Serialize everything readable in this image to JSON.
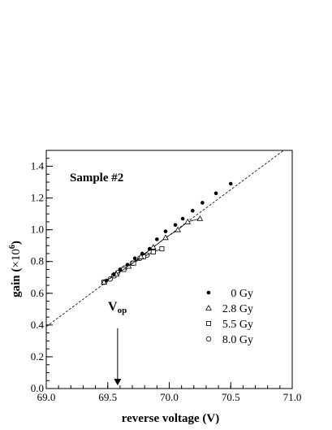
{
  "chart_data": {
    "type": "scatter",
    "title": "",
    "xlabel": "reverse voltage (V)",
    "ylabel_main": "gain (",
    "ylabel_times": "×10",
    "ylabel_exp": "6",
    "ylabel_close": ")",
    "xlim": [
      69.0,
      71.0
    ],
    "ylim": [
      0.0,
      1.5
    ],
    "x_ticks": [
      69.0,
      69.5,
      70.0,
      70.5,
      71.0
    ],
    "x_tick_labels": [
      "69.0",
      "69.5",
      "70.0",
      "70.5",
      "71.0"
    ],
    "y_ticks": [
      0.0,
      0.2,
      0.4,
      0.6,
      0.8,
      1.0,
      1.2,
      1.4
    ],
    "y_tick_labels": [
      "0.0",
      "0.2",
      "0.4",
      "0.6",
      "0.8",
      "1.0",
      "1.2",
      "1.4"
    ],
    "grid": false,
    "legend_position": "bottom-right",
    "annotations": {
      "sample_label": "Sample #2",
      "vop_main": "V",
      "vop_sub": "op",
      "vop_x": 69.58,
      "vop_arrow_y": [
        0.38,
        0.02
      ]
    },
    "fit_line": {
      "style": "dashed",
      "x": [
        69.0,
        70.93
      ],
      "y": [
        0.39,
        1.5
      ]
    },
    "series": [
      {
        "name": "0 Gy",
        "marker": "filled-circle",
        "connected": false,
        "x": [
          69.49,
          69.55,
          69.6,
          69.66,
          69.72,
          69.78,
          69.84,
          69.9,
          69.97,
          70.05,
          70.11,
          70.19,
          70.27,
          70.38,
          70.5
        ],
        "y": [
          0.68,
          0.72,
          0.75,
          0.78,
          0.82,
          0.85,
          0.88,
          0.94,
          0.99,
          1.03,
          1.07,
          1.12,
          1.17,
          1.23,
          1.29
        ]
      },
      {
        "name": "2.8 Gy",
        "marker": "open-triangle",
        "connected": true,
        "x": [
          69.47,
          69.57,
          69.67,
          69.77,
          69.87,
          69.97,
          70.07,
          70.15,
          70.25
        ],
        "y": [
          0.67,
          0.72,
          0.77,
          0.83,
          0.89,
          0.95,
          1.0,
          1.05,
          1.07
        ]
      },
      {
        "name": "5.5 Gy",
        "marker": "open-square",
        "connected": true,
        "x": [
          69.47,
          69.55,
          69.63,
          69.71,
          69.79,
          69.87,
          69.94
        ],
        "y": [
          0.67,
          0.71,
          0.75,
          0.79,
          0.83,
          0.86,
          0.88
        ]
      },
      {
        "name": "8.0 Gy",
        "marker": "open-circle",
        "connected": true,
        "x": [
          69.47,
          69.52,
          69.58,
          69.64,
          69.7,
          69.76,
          69.82
        ],
        "y": [
          0.67,
          0.69,
          0.73,
          0.76,
          0.79,
          0.82,
          0.84
        ]
      }
    ]
  }
}
